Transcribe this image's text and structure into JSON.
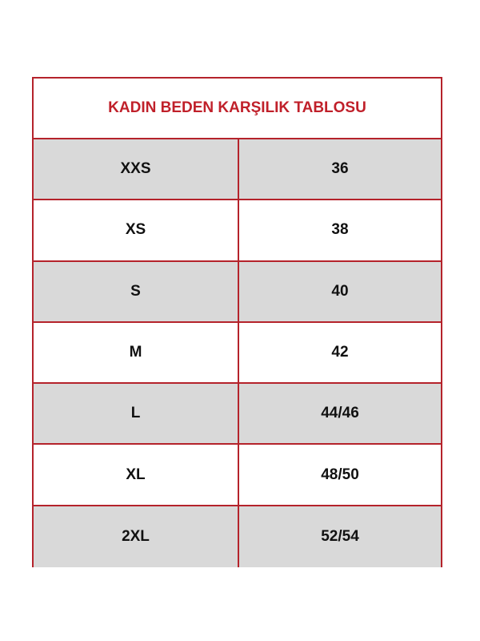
{
  "title": "KADIN BEDEN KARŞILIK TABLOSU",
  "colors": {
    "border": "#b5232b",
    "title": "#c0202a",
    "shaded_row": "#d9d9d9"
  },
  "rows": [
    {
      "size": "XXS",
      "value": "36"
    },
    {
      "size": "XS",
      "value": "38"
    },
    {
      "size": "S",
      "value": "40"
    },
    {
      "size": "M",
      "value": "42"
    },
    {
      "size": "L",
      "value": "44/46"
    },
    {
      "size": "XL",
      "value": "48/50"
    },
    {
      "size": "2XL",
      "value": "52/54"
    }
  ]
}
